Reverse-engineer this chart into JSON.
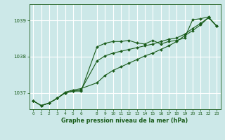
{
  "title": "Graphe pression niveau de la mer (hPa)",
  "bg_color": "#cce8e8",
  "grid_color": "#ffffff",
  "line_color": "#1a5c1a",
  "marker_color": "#1a5c1a",
  "xlim": [
    -0.5,
    23.5
  ],
  "ylim": [
    1036.55,
    1039.45
  ],
  "xticks": [
    0,
    1,
    2,
    3,
    4,
    5,
    6,
    8,
    9,
    10,
    11,
    12,
    13,
    14,
    15,
    16,
    17,
    18,
    19,
    20,
    21,
    22,
    23
  ],
  "yticks": [
    1037,
    1038,
    1039
  ],
  "series": {
    "line1": {
      "x": [
        0,
        1,
        2,
        3,
        4,
        5,
        6,
        8,
        9,
        10,
        11,
        12,
        13,
        14,
        15,
        16,
        17,
        18,
        19,
        20,
        21,
        22,
        23
      ],
      "y": [
        1036.78,
        1036.65,
        1036.72,
        1036.85,
        1037.0,
        1037.05,
        1037.05,
        1038.27,
        1038.37,
        1038.42,
        1038.42,
        1038.45,
        1038.38,
        1038.35,
        1038.45,
        1038.35,
        1038.42,
        1038.45,
        1038.52,
        1039.02,
        1039.05,
        1039.1,
        1038.85
      ]
    },
    "line2": {
      "x": [
        0,
        1,
        2,
        3,
        4,
        5,
        6,
        8,
        9,
        10,
        11,
        12,
        13,
        14,
        15,
        16,
        17,
        18,
        19,
        20,
        21,
        22,
        23
      ],
      "y": [
        1036.78,
        1036.65,
        1036.72,
        1036.85,
        1037.0,
        1037.05,
        1037.08,
        1037.88,
        1038.02,
        1038.1,
        1038.15,
        1038.2,
        1038.25,
        1038.3,
        1038.35,
        1038.42,
        1038.48,
        1038.52,
        1038.62,
        1038.78,
        1038.92,
        1039.08,
        1038.85
      ]
    },
    "line3": {
      "x": [
        0,
        1,
        2,
        3,
        4,
        5,
        6,
        8,
        9,
        10,
        11,
        12,
        13,
        14,
        15,
        16,
        17,
        18,
        19,
        20,
        21,
        22,
        23
      ],
      "y": [
        1036.78,
        1036.65,
        1036.72,
        1036.85,
        1037.02,
        1037.08,
        1037.12,
        1037.28,
        1037.48,
        1037.62,
        1037.72,
        1037.82,
        1037.92,
        1038.02,
        1038.1,
        1038.2,
        1038.3,
        1038.42,
        1038.58,
        1038.72,
        1038.88,
        1039.08,
        1038.85
      ]
    }
  }
}
